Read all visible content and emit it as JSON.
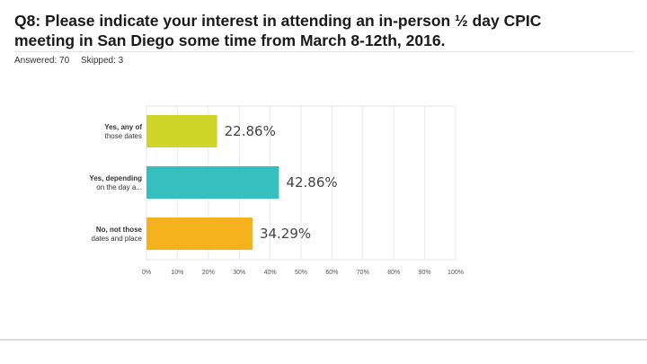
{
  "question": {
    "title_line1": "Q8: Please indicate your interest in attending an in-person ½ day CPIC",
    "title_line2": "meeting in San Diego some time from March 8-12th, 2016."
  },
  "stats": {
    "answered": "Answered: 70",
    "skipped": "Skipped: 3"
  },
  "chart_data": {
    "type": "bar",
    "orientation": "horizontal",
    "categories": [
      [
        "Yes, any of",
        "those dates"
      ],
      [
        "Yes, depending",
        "on the day a..."
      ],
      [
        "No, not those",
        "dates and place"
      ]
    ],
    "values": [
      22.86,
      42.86,
      34.29
    ],
    "data_labels": [
      "22.86%",
      "42.86%",
      "34.29%"
    ],
    "colors": [
      "#cfd62a",
      "#35bfbf",
      "#f5b21f"
    ],
    "xlim": [
      0,
      100
    ],
    "x_ticks": [
      "0%",
      "10%",
      "20%",
      "30%",
      "40%",
      "50%",
      "60%",
      "70%",
      "80%",
      "90%",
      "100%"
    ],
    "grid": true,
    "title": "",
    "xlabel": "",
    "ylabel": ""
  }
}
